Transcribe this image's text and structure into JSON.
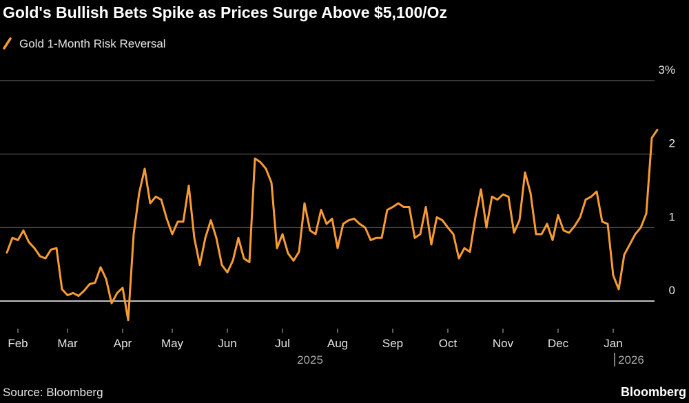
{
  "chart_data": {
    "type": "line",
    "title": "Gold's Bullish Bets Spike as Prices Surge Above $5,100/Oz",
    "source": "Source: Bloomberg",
    "brand": "Bloomberg",
    "years": [
      "2025",
      "2026"
    ],
    "categories": [
      null,
      null,
      "Feb",
      null,
      null,
      null,
      null,
      null,
      null,
      null,
      null,
      "Mar",
      null,
      null,
      null,
      null,
      null,
      null,
      null,
      null,
      null,
      "Apr",
      null,
      null,
      null,
      null,
      null,
      null,
      null,
      null,
      "May",
      null,
      null,
      null,
      null,
      null,
      null,
      null,
      null,
      null,
      "Jun",
      null,
      null,
      null,
      null,
      null,
      null,
      null,
      null,
      null,
      "Jul",
      null,
      null,
      null,
      null,
      null,
      null,
      null,
      null,
      null,
      "Aug",
      null,
      null,
      null,
      null,
      null,
      null,
      null,
      null,
      null,
      "Sep",
      null,
      null,
      null,
      null,
      null,
      null,
      null,
      null,
      null,
      "Oct",
      null,
      null,
      null,
      null,
      null,
      null,
      null,
      null,
      null,
      "Nov",
      null,
      null,
      null,
      null,
      null,
      null,
      null,
      null,
      null,
      "Dec",
      null,
      null,
      null,
      null,
      null,
      null,
      null,
      null,
      null,
      "Jan",
      null,
      null,
      null,
      null,
      null,
      null,
      null,
      null
    ],
    "series": [
      {
        "name": "Gold 1-Month Risk Reversal",
        "color": "#f89c32",
        "values": [
          0.66,
          0.86,
          0.83,
          0.96,
          0.8,
          0.72,
          0.61,
          0.58,
          0.7,
          0.72,
          0.16,
          0.08,
          0.11,
          0.07,
          0.14,
          0.23,
          0.25,
          0.46,
          0.3,
          -0.03,
          0.11,
          0.18,
          -0.26,
          0.91,
          1.47,
          1.8,
          1.33,
          1.42,
          1.38,
          1.12,
          0.91,
          1.08,
          1.08,
          1.57,
          0.86,
          0.49,
          0.86,
          1.1,
          0.86,
          0.49,
          0.39,
          0.55,
          0.86,
          0.58,
          0.53,
          1.94,
          1.89,
          1.8,
          1.61,
          0.72,
          0.91,
          0.65,
          0.55,
          0.67,
          1.33,
          0.96,
          0.91,
          1.24,
          1.05,
          1.12,
          0.72,
          1.05,
          1.1,
          1.12,
          1.05,
          1.0,
          0.83,
          0.86,
          0.86,
          1.24,
          1.28,
          1.33,
          1.28,
          1.28,
          0.86,
          0.91,
          1.28,
          0.77,
          1.14,
          1.1,
          1.0,
          0.91,
          0.58,
          0.72,
          0.67,
          1.14,
          1.52,
          1.0,
          1.42,
          1.38,
          1.45,
          1.42,
          0.93,
          1.1,
          1.75,
          1.47,
          0.91,
          0.91,
          1.05,
          0.83,
          1.17,
          0.96,
          0.93,
          1.02,
          1.14,
          1.38,
          1.42,
          1.49,
          1.08,
          1.05,
          0.35,
          0.16,
          0.63,
          0.77,
          0.91,
          1.0,
          1.19,
          2.22,
          2.33
        ]
      }
    ],
    "ylim": [
      -0.45,
      3
    ],
    "yticks": [
      0,
      1,
      2,
      {
        "value": 3,
        "label": "3%"
      }
    ],
    "grid": true
  }
}
